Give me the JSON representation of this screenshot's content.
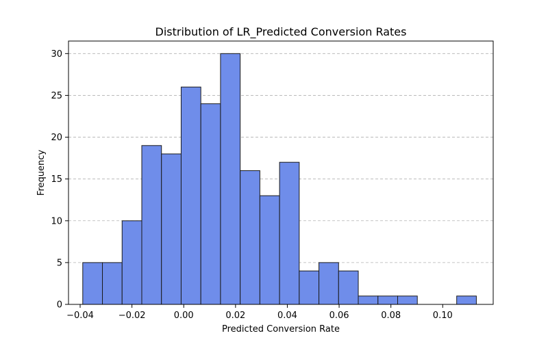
{
  "chart_data": {
    "type": "bar",
    "title": "Distribution of LR_Predicted Conversion Rates",
    "xlabel": "Predicted Conversion Rate",
    "ylabel": "Frequency",
    "xlim": [
      -0.0445,
      0.1195
    ],
    "ylim": [
      0,
      31.5
    ],
    "bin_edges": [
      -0.039,
      -0.0314,
      -0.0238,
      -0.0162,
      -0.0086,
      -0.001,
      0.0066,
      0.0142,
      0.0218,
      0.0294,
      0.037,
      0.0446,
      0.0522,
      0.0598,
      0.0674,
      0.075,
      0.0826,
      0.0902,
      0.0978,
      0.1054,
      0.113
    ],
    "values": [
      5,
      5,
      10,
      19,
      18,
      26,
      24,
      30,
      16,
      13,
      17,
      4,
      5,
      4,
      1,
      1,
      1,
      0,
      0,
      1
    ],
    "x_ticks": [
      -0.04,
      -0.02,
      0.0,
      0.02,
      0.04,
      0.06,
      0.08,
      0.1
    ],
    "x_tick_labels": [
      "−0.04",
      "−0.02",
      "0.00",
      "0.02",
      "0.04",
      "0.06",
      "0.08",
      "0.10"
    ],
    "y_ticks": [
      0,
      5,
      10,
      15,
      20,
      25,
      30
    ],
    "y_tick_labels": [
      "0",
      "5",
      "10",
      "15",
      "20",
      "25",
      "30"
    ],
    "grid": "y-dashed",
    "bar_color": "#6f8dea",
    "edge_color": "#1a1a1a",
    "legend": "none"
  }
}
